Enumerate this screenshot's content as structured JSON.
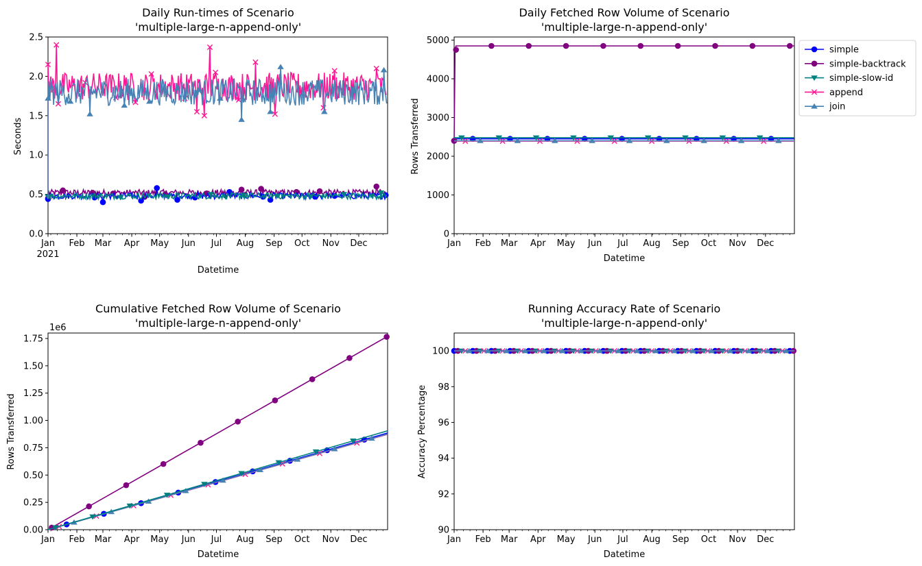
{
  "scenario_name": "'multiple-large-n-append-only'",
  "colors": {
    "simple": "#0000ff",
    "simple-backtrack": "#800080",
    "simple-slow-id": "#008080",
    "append": "#ff1493",
    "join": "#4682b4"
  },
  "legend": {
    "placement": "outside right of top-right chart",
    "entries": [
      "simple",
      "simple-backtrack",
      "simple-slow-id",
      "append",
      "join"
    ],
    "markers": [
      "circle",
      "circle",
      "triangle-down",
      "x",
      "triangle-up"
    ]
  },
  "chart_data": [
    {
      "type": "line",
      "title": "Daily Run-times of Scenario",
      "subtitle": "'multiple-large-n-append-only'",
      "xlabel": "Datetime",
      "ylabel": "Seconds",
      "x_ticks": [
        "Jan\n2021",
        "Feb",
        "Mar",
        "Apr",
        "May",
        "Jun",
        "Jul",
        "Aug",
        "Sep",
        "Oct",
        "Nov",
        "Dec"
      ],
      "y_ticks": [
        "0.0",
        "0.5",
        "1.0",
        "1.5",
        "2.0",
        "2.5"
      ],
      "ylim": [
        0,
        2.5
      ],
      "grid": false,
      "series": [
        {
          "name": "simple",
          "mean": 0.48,
          "noise": 0.04,
          "markers": [
            [
              "2021-01-01",
              0.44
            ],
            [
              "2021-02-20",
              0.46
            ],
            [
              "2021-03-01",
              0.4
            ],
            [
              "2021-04-11",
              0.42
            ],
            [
              "2021-04-28",
              0.58
            ],
            [
              "2021-05-20",
              0.43
            ],
            [
              "2021-06-08",
              0.46
            ],
            [
              "2021-07-15",
              0.53
            ],
            [
              "2021-08-20",
              0.47
            ],
            [
              "2021-08-28",
              0.43
            ],
            [
              "2021-10-15",
              0.47
            ],
            [
              "2021-11-05",
              0.48
            ],
            [
              "2021-12-30",
              0.49
            ]
          ]
        },
        {
          "name": "simple-backtrack",
          "mean": 0.52,
          "noise": 0.04,
          "markers": [
            [
              "2021-01-01",
              0.45
            ],
            [
              "2021-01-17",
              0.55
            ],
            [
              "2021-02-18",
              0.52
            ],
            [
              "2021-03-12",
              0.51
            ],
            [
              "2021-04-15",
              0.47
            ],
            [
              "2021-05-07",
              0.5
            ],
            [
              "2021-06-20",
              0.51
            ],
            [
              "2021-07-28",
              0.56
            ],
            [
              "2021-08-18",
              0.57
            ],
            [
              "2021-09-25",
              0.53
            ],
            [
              "2021-10-20",
              0.54
            ],
            [
              "2021-12-20",
              0.6
            ]
          ]
        },
        {
          "name": "simple-slow-id",
          "mean": 0.48,
          "noise": 0.04,
          "markers": [
            [
              "2021-01-01",
              0.47
            ],
            [
              "2021-03-20",
              0.46
            ],
            [
              "2021-05-10",
              0.47
            ],
            [
              "2021-06-25",
              0.5
            ],
            [
              "2021-07-30",
              0.49
            ],
            [
              "2021-09-05",
              0.48
            ],
            [
              "2021-10-10",
              0.47
            ],
            [
              "2021-11-15",
              0.5
            ],
            [
              "2021-12-25",
              0.52
            ]
          ]
        },
        {
          "name": "append",
          "mean": 1.87,
          "noise": 0.18,
          "markers": [
            [
              "2021-01-01",
              2.15
            ],
            [
              "2021-01-10",
              2.4
            ],
            [
              "2021-01-12",
              1.65
            ],
            [
              "2021-02-10",
              1.92
            ],
            [
              "2021-03-15",
              1.73
            ],
            [
              "2021-04-05",
              1.67
            ],
            [
              "2021-04-22",
              2.03
            ],
            [
              "2021-05-28",
              1.72
            ],
            [
              "2021-06-10",
              1.55
            ],
            [
              "2021-06-18",
              1.5
            ],
            [
              "2021-06-24",
              2.37
            ],
            [
              "2021-06-30",
              2.05
            ],
            [
              "2021-07-25",
              1.7
            ],
            [
              "2021-08-12",
              2.18
            ],
            [
              "2021-09-02",
              1.52
            ],
            [
              "2021-10-24",
              1.6
            ],
            [
              "2021-11-05",
              2.07
            ],
            [
              "2021-12-20",
              2.1
            ]
          ]
        },
        {
          "name": "join",
          "mean": 1.8,
          "noise": 0.17,
          "markers": [
            [
              "2021-01-01",
              1.72
            ],
            [
              "2021-01-25",
              1.68
            ],
            [
              "2021-02-15",
              1.52
            ],
            [
              "2021-03-24",
              1.63
            ],
            [
              "2021-04-20",
              1.68
            ],
            [
              "2021-05-20",
              1.85
            ],
            [
              "2021-06-12",
              1.83
            ],
            [
              "2021-07-05",
              1.72
            ],
            [
              "2021-07-28",
              1.45
            ],
            [
              "2021-08-28",
              1.55
            ],
            [
              "2021-09-08",
              2.12
            ],
            [
              "2021-10-25",
              1.55
            ],
            [
              "2021-11-25",
              1.83
            ],
            [
              "2021-12-28",
              2.08
            ]
          ]
        }
      ]
    },
    {
      "type": "line",
      "title": "Daily Fetched Row Volume of Scenario",
      "subtitle": "'multiple-large-n-append-only'",
      "xlabel": "Datetime",
      "ylabel": "Rows Transferred",
      "x_ticks": [
        "Jan",
        "Feb",
        "Mar",
        "Apr",
        "May",
        "Jun",
        "Jul",
        "Aug",
        "Sep",
        "Oct",
        "Nov",
        "Dec"
      ],
      "y_ticks": [
        "0",
        "1000",
        "2000",
        "3000",
        "4000",
        "5000"
      ],
      "ylim": [
        0,
        5080
      ],
      "grid": false,
      "series": [
        {
          "name": "simple",
          "first": 2400,
          "value": 2450
        },
        {
          "name": "simple-backtrack",
          "first": 2400,
          "second": 4750,
          "value": 4850
        },
        {
          "name": "simple-slow-id",
          "value": 2480
        },
        {
          "name": "append",
          "value": 2390
        },
        {
          "name": "join",
          "value": 2400
        }
      ]
    },
    {
      "type": "line",
      "title": "Cumulative Fetched Row Volume of Scenario",
      "subtitle": "'multiple-large-n-append-only'",
      "xlabel": "Datetime",
      "ylabel": "Rows Transferred",
      "y_offset_label": "1e6",
      "x_ticks": [
        "Jan",
        "Feb",
        "Mar",
        "Apr",
        "May",
        "Jun",
        "Jul",
        "Aug",
        "Sep",
        "Oct",
        "Nov",
        "Dec"
      ],
      "y_ticks": [
        "0.00",
        "0.25",
        "0.50",
        "0.75",
        "1.00",
        "1.25",
        "1.50",
        "1.75"
      ],
      "ylim": [
        0,
        1.8
      ],
      "grid": false,
      "series": [
        {
          "name": "simple",
          "start": 0,
          "end": 0.885
        },
        {
          "name": "simple-backtrack",
          "start": 0,
          "end": 1.77
        },
        {
          "name": "simple-slow-id",
          "start": 0,
          "end": 0.905
        },
        {
          "name": "append",
          "start": 0,
          "end": 0.873
        },
        {
          "name": "join",
          "start": 0,
          "end": 0.876
        }
      ]
    },
    {
      "type": "line",
      "title": "Running Accuracy Rate of Scenario",
      "subtitle": "'multiple-large-n-append-only'",
      "xlabel": "Datetime",
      "ylabel": "Accuracy Percentage",
      "x_ticks": [
        "Jan",
        "Feb",
        "Mar",
        "Apr",
        "May",
        "Jun",
        "Jul",
        "Aug",
        "Sep",
        "Oct",
        "Nov",
        "Dec"
      ],
      "y_ticks": [
        "90",
        "92",
        "94",
        "96",
        "98",
        "100"
      ],
      "ylim": [
        90,
        101
      ],
      "grid": false,
      "series": [
        {
          "name": "simple",
          "value": 100
        },
        {
          "name": "simple-backtrack",
          "value": 100
        },
        {
          "name": "simple-slow-id",
          "value": 100
        },
        {
          "name": "append",
          "value": 100
        },
        {
          "name": "join",
          "value": 100
        }
      ]
    }
  ]
}
